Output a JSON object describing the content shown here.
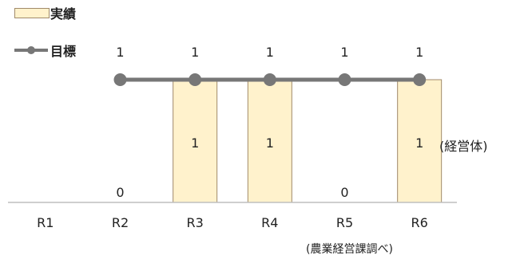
{
  "chart_data": {
    "type": "bar",
    "categories": [
      "R1",
      "R2",
      "R3",
      "R4",
      "R5",
      "R6"
    ],
    "series": [
      {
        "name": "実績",
        "values": [
          null,
          0,
          1,
          1,
          0,
          1
        ],
        "value_labels": [
          "",
          "0",
          "1",
          "1",
          "0",
          "1"
        ],
        "color": "#FFF2CC",
        "edge_color": "#A08A6A"
      },
      {
        "name": "目標",
        "values": [
          null,
          1,
          1,
          1,
          1,
          1
        ],
        "value_labels": [
          "",
          "1",
          "1",
          "1",
          "1",
          "1"
        ],
        "style": "line-marker",
        "color": "#777777"
      }
    ],
    "unit_label": "(経営体)",
    "source_note": "(農業経営課調べ)",
    "ylim": [
      0,
      1
    ],
    "grid": false,
    "legend_position": "top-left"
  }
}
